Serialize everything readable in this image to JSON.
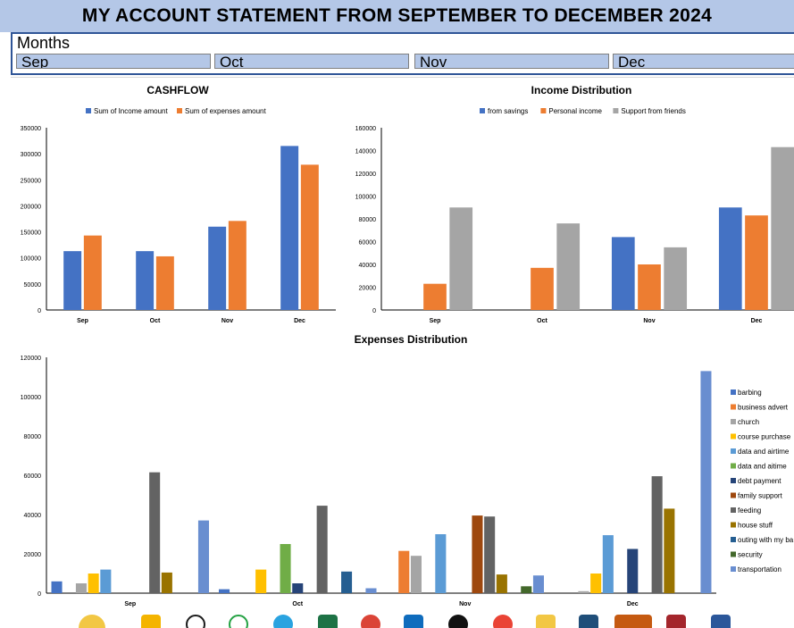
{
  "header": {
    "title": "MY ACCOUNT STATEMENT FROM SEPTEMBER TO DECEMBER 2024"
  },
  "slicer": {
    "title": "Months",
    "items": [
      "Sep",
      "Oct",
      "Nov",
      "Dec"
    ]
  },
  "colors": {
    "banner": "#b4c7e7",
    "blue": "#4472c4",
    "orange": "#ed7d31",
    "gray": "#a5a5a5",
    "slicer_border": "#2f5597"
  },
  "chart_data": [
    {
      "id": "cashflow",
      "type": "bar",
      "title": "CASHFLOW",
      "categories": [
        "Sep",
        "Oct",
        "Nov",
        "Dec"
      ],
      "series": [
        {
          "name": "Sum of Income amount",
          "color": "#4472c4",
          "values": [
            113000,
            113000,
            160000,
            315000
          ]
        },
        {
          "name": "Sum of expenses amount",
          "color": "#ed7d31",
          "values": [
            143000,
            103000,
            171000,
            279000
          ]
        }
      ],
      "ylim": [
        0,
        350000
      ],
      "yticks": [
        "0",
        "50000",
        "100000",
        "150000",
        "200000",
        "250000",
        "300000",
        "350000"
      ],
      "legend": "top"
    },
    {
      "id": "income",
      "type": "bar",
      "title": "Income Distribution",
      "categories": [
        "Sep",
        "Oct",
        "Nov",
        "Dec"
      ],
      "series": [
        {
          "name": "from savings",
          "color": "#4472c4",
          "values": [
            0,
            0,
            64000,
            90000
          ]
        },
        {
          "name": "Personal income",
          "color": "#ed7d31",
          "values": [
            23000,
            37000,
            40000,
            83000
          ]
        },
        {
          "name": "Support from friends",
          "color": "#a5a5a5",
          "values": [
            90000,
            76000,
            55000,
            143000
          ]
        }
      ],
      "ylim": [
        0,
        160000
      ],
      "yticks": [
        "0",
        "20000",
        "40000",
        "60000",
        "80000",
        "100000",
        "120000",
        "140000",
        "160000"
      ],
      "legend": "top"
    },
    {
      "id": "expenses",
      "type": "bar",
      "title": "Expenses Distribution",
      "categories": [
        "Sep",
        "Oct",
        "Nov",
        "Dec"
      ],
      "series": [
        {
          "name": "barbing",
          "color": "#4472c4",
          "values": [
            6000,
            2000,
            0,
            0
          ]
        },
        {
          "name": "business advert",
          "color": "#ed7d31",
          "values": [
            0,
            0,
            21500,
            0
          ]
        },
        {
          "name": "church",
          "color": "#a5a5a5",
          "values": [
            5000,
            0,
            19000,
            1000
          ]
        },
        {
          "name": "course purchase",
          "color": "#ffc000",
          "values": [
            10000,
            12000,
            0,
            10000
          ]
        },
        {
          "name": "data and airtime",
          "color": "#5b9bd5",
          "values": [
            12000,
            0,
            30000,
            29500
          ]
        },
        {
          "name": "data and aitime",
          "color": "#70ad47",
          "values": [
            0,
            25000,
            0,
            0
          ]
        },
        {
          "name": "debt payment",
          "color": "#264478",
          "values": [
            0,
            5000,
            0,
            22500
          ]
        },
        {
          "name": "family support",
          "color": "#9e480e",
          "values": [
            0,
            0,
            39500,
            0
          ]
        },
        {
          "name": "feeding",
          "color": "#636363",
          "values": [
            61500,
            44500,
            39000,
            59500
          ]
        },
        {
          "name": "house stuff",
          "color": "#997300",
          "values": [
            10500,
            0,
            9500,
            43000
          ]
        },
        {
          "name": "outing with my ba",
          "color": "#255e91",
          "values": [
            0,
            11000,
            0,
            0
          ]
        },
        {
          "name": "security",
          "color": "#43682b",
          "values": [
            0,
            0,
            3500,
            0
          ]
        },
        {
          "name": "transportation",
          "color": "#698ed0",
          "values": [
            37000,
            2500,
            9000,
            113000
          ]
        }
      ],
      "ylim": [
        0,
        120000
      ],
      "yticks": [
        "0",
        "20000",
        "40000",
        "60000",
        "80000",
        "100000",
        "120000"
      ],
      "legend": "right"
    }
  ]
}
